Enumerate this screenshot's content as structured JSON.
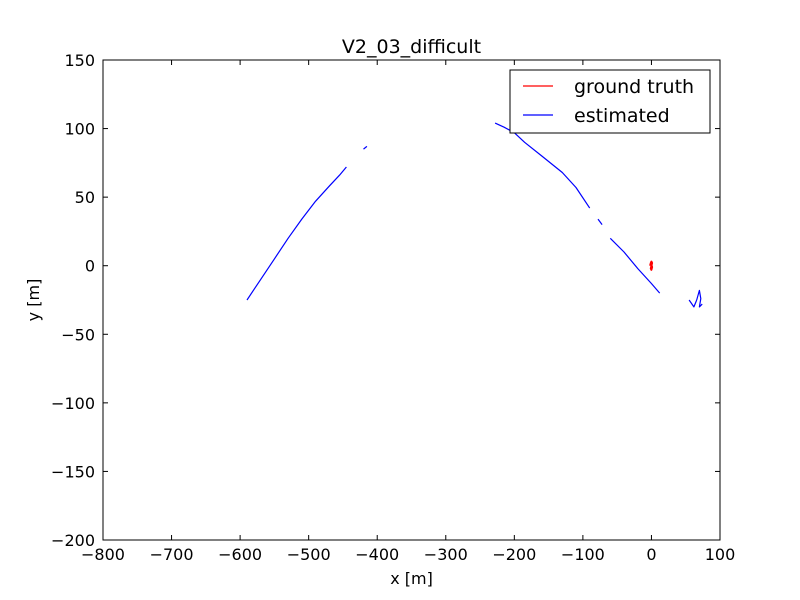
{
  "chart_data": {
    "type": "line",
    "title": "V2_03_difficult",
    "xlabel": "x [m]",
    "ylabel": "y [m]",
    "xlim": [
      -800,
      100
    ],
    "ylim": [
      -200,
      150
    ],
    "xticks": [
      -800,
      -700,
      -600,
      -500,
      -400,
      -300,
      -200,
      -100,
      0,
      100
    ],
    "yticks": [
      -200,
      -150,
      -100,
      -50,
      0,
      50,
      100,
      150
    ],
    "xtick_labels": [
      "−800",
      "−700",
      "−600",
      "−500",
      "−400",
      "−300",
      "−200",
      "−100",
      "0",
      "100"
    ],
    "ytick_labels": [
      "−200",
      "−150",
      "−100",
      "−50",
      "0",
      "50",
      "100",
      "150"
    ],
    "grid": false,
    "legend_position": "top-right",
    "series": [
      {
        "name": "ground truth",
        "color": "#ff0000",
        "segments": [
          [
            [
              -2,
              0
            ],
            [
              -1,
              2
            ],
            [
              0,
              3
            ],
            [
              1,
              2
            ],
            [
              0,
              0
            ],
            [
              -1,
              -2
            ],
            [
              0,
              -3
            ],
            [
              1,
              -1
            ],
            [
              0,
              1
            ]
          ]
        ]
      },
      {
        "name": "estimated",
        "color": "#0000ff",
        "segments": [
          [
            [
              -590,
              -25
            ],
            [
              -570,
              -10
            ],
            [
              -550,
              5
            ],
            [
              -530,
              20
            ],
            [
              -510,
              34
            ],
            [
              -490,
              47
            ],
            [
              -470,
              58
            ],
            [
              -455,
              66
            ],
            [
              -445,
              72
            ]
          ],
          [
            [
              -420,
              85
            ],
            [
              -415,
              87
            ]
          ],
          [
            [
              -228,
              104
            ],
            [
              -215,
              101
            ],
            [
              -200,
              97
            ],
            [
              -185,
              90
            ],
            [
              -160,
              80
            ],
            [
              -130,
              68
            ],
            [
              -110,
              57
            ],
            [
              -90,
              42
            ]
          ],
          [
            [
              -78,
              34
            ],
            [
              -72,
              30
            ]
          ],
          [
            [
              -60,
              20
            ],
            [
              -40,
              10
            ],
            [
              -20,
              -2
            ],
            [
              0,
              -13
            ],
            [
              12,
              -20
            ]
          ],
          [
            [
              55,
              -25
            ],
            [
              62,
              -30
            ],
            [
              66,
              -25
            ]
          ],
          [
            [
              66,
              -25
            ],
            [
              70,
              -18
            ],
            [
              72,
              -24
            ],
            [
              70,
              -30
            ],
            [
              74,
              -28
            ]
          ]
        ]
      }
    ]
  }
}
